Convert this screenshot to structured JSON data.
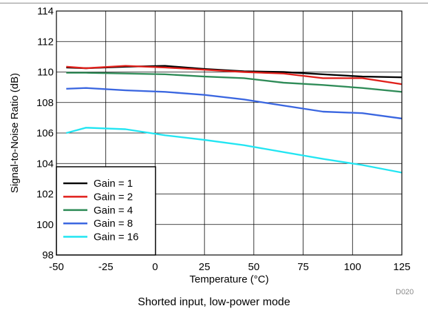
{
  "chart_data": {
    "type": "line",
    "xlabel": "Temperature (°C)",
    "ylabel": "Signal-to-Noise Ratio (dB)",
    "xlim": [
      -50,
      125
    ],
    "ylim": [
      98,
      114
    ],
    "xticks": [
      -50,
      -25,
      0,
      25,
      50,
      75,
      100,
      125
    ],
    "yticks": [
      98,
      100,
      102,
      104,
      106,
      108,
      110,
      112,
      114
    ],
    "grid": true,
    "legend_position": "bottom-left",
    "x": [
      -45,
      -35,
      -15,
      5,
      25,
      45,
      65,
      85,
      105,
      125
    ],
    "series": [
      {
        "name": "Gain = 1",
        "color": "#000000",
        "values": [
          110.3,
          110.25,
          110.35,
          110.4,
          110.2,
          110.05,
          110.0,
          109.85,
          109.7,
          109.65
        ]
      },
      {
        "name": "Gain = 2",
        "color": "#e0201b",
        "values": [
          110.35,
          110.25,
          110.4,
          110.3,
          110.15,
          110.0,
          109.9,
          109.6,
          109.6,
          109.2
        ]
      },
      {
        "name": "Gain = 4",
        "color": "#2e8b57",
        "values": [
          109.95,
          109.95,
          109.9,
          109.85,
          109.7,
          109.6,
          109.3,
          109.15,
          108.95,
          108.7
        ]
      },
      {
        "name": "Gain = 8",
        "color": "#3a66e0",
        "values": [
          108.9,
          108.95,
          108.8,
          108.7,
          108.5,
          108.2,
          107.8,
          107.4,
          107.3,
          106.95
        ]
      },
      {
        "name": "Gain = 16",
        "color": "#22e5f2",
        "values": [
          106.0,
          106.35,
          106.25,
          105.85,
          105.55,
          105.2,
          104.75,
          104.3,
          103.9,
          103.4
        ]
      }
    ]
  },
  "caption": "Shorted input, low-power mode",
  "code": "D020"
}
